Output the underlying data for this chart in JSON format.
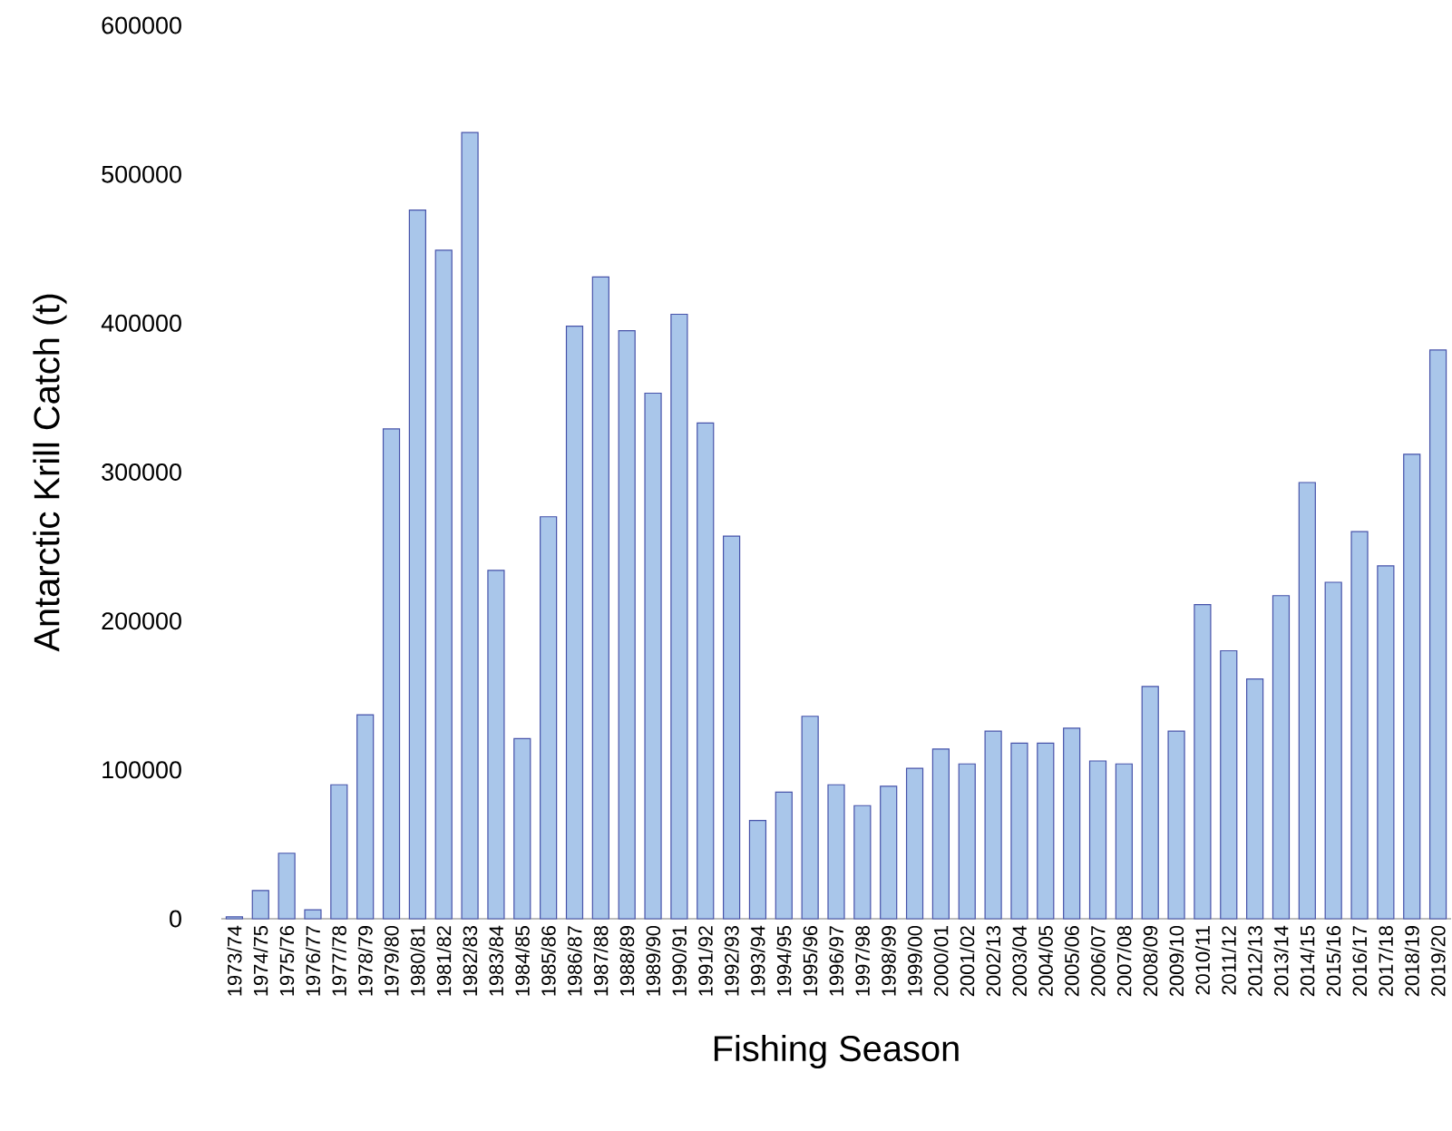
{
  "chart_data": {
    "type": "bar",
    "xlabel": "Fishing Season",
    "ylabel": "Antarctic Krill Catch (t)",
    "categories": [
      "1973/74",
      "1974/75",
      "1975/76",
      "1976/77",
      "1977/78",
      "1978/79",
      "1979/80",
      "1980/81",
      "1981/82",
      "1982/83",
      "1983/84",
      "1984/85",
      "1985/86",
      "1986/87",
      "1987/88",
      "1988/89",
      "1989/90",
      "1990/91",
      "1991/92",
      "1992/93",
      "1993/94",
      "1994/95",
      "1995/96",
      "1996/97",
      "1997/98",
      "1998/99",
      "1999/00",
      "2000/01",
      "2001/02",
      "2002/13",
      "2003/04",
      "2004/05",
      "2005/06",
      "2006/07",
      "2007/08",
      "2008/09",
      "2009/10",
      "2010/11",
      "2011/12",
      "2012/13",
      "2013/14",
      "2014/15",
      "2015/16",
      "2016/17",
      "2017/18",
      "2018/19",
      "2019/20"
    ],
    "values": [
      1300,
      19000,
      44000,
      6000,
      90000,
      137000,
      329000,
      476000,
      449000,
      528000,
      234000,
      121000,
      270000,
      398000,
      431000,
      395000,
      353000,
      406000,
      333000,
      257000,
      66000,
      85000,
      136000,
      90000,
      76000,
      89000,
      101000,
      114000,
      104000,
      126000,
      118000,
      118000,
      128000,
      106000,
      104000,
      156000,
      126000,
      211000,
      180000,
      161000,
      217000,
      293000,
      226000,
      260000,
      237000,
      312000,
      382000
    ],
    "color": "#a9c6ea",
    "ylim": [
      0,
      600000
    ],
    "yticks": [
      0,
      100000,
      200000,
      300000,
      400000,
      500000,
      600000
    ],
    "grid": false
  }
}
